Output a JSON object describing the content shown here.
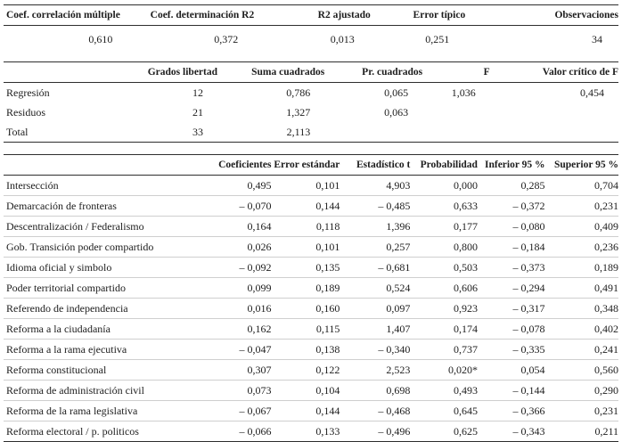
{
  "summary_table": {
    "headers": [
      "Coef. correlación múltiple",
      "Coef. determinación R2",
      "R2 ajustado",
      "Error típico",
      "Observaciones"
    ],
    "values": [
      "0,610",
      "0,372",
      "0,013",
      "0,251",
      "34"
    ]
  },
  "anova_table": {
    "headers": [
      "",
      "Grados libertad",
      "Suma cuadrados",
      "Pr. cuadrados",
      "F",
      "Valor crítico de F"
    ],
    "rows": [
      [
        "Regresión",
        "12",
        "0,786",
        "0,065",
        "1,036",
        "0,454"
      ],
      [
        "Residuos",
        "21",
        "1,327",
        "0,063",
        "",
        ""
      ],
      [
        "Total",
        "33",
        "2,113",
        "",
        "",
        ""
      ]
    ]
  },
  "coefficients_table": {
    "headers": [
      "",
      "Coeficientes",
      "Error estándar",
      "Estadístico t",
      "Probabilidad",
      "Inferior 95 %",
      "Superior 95 %"
    ],
    "rows": [
      [
        "Intersección",
        "0,495",
        "0,101",
        "4,903",
        "0,000",
        "0,285",
        "0,704"
      ],
      [
        "Demarcación de fronteras",
        "– 0,070",
        "0,144",
        "– 0,485",
        "0,633",
        "– 0,372",
        "0,231"
      ],
      [
        "Descentralización / Federalismo",
        "0,164",
        "0,118",
        "1,396",
        "0,177",
        "– 0,080",
        "0,409"
      ],
      [
        "Gob. Transición poder compartido",
        "0,026",
        "0,101",
        "0,257",
        "0,800",
        "– 0,184",
        "0,236"
      ],
      [
        "Idioma oficial y simbolo",
        "– 0,092",
        "0,135",
        "– 0,681",
        "0,503",
        "– 0,373",
        "0,189"
      ],
      [
        "Poder territorial compartido",
        "0,099",
        "0,189",
        "0,524",
        "0,606",
        "– 0,294",
        "0,491"
      ],
      [
        "Referendo de independencia",
        "0,016",
        "0,160",
        "0,097",
        "0,923",
        "– 0,317",
        "0,348"
      ],
      [
        "Reforma a la ciudadanía",
        "0,162",
        "0,115",
        "1,407",
        "0,174",
        "– 0,078",
        "0,402"
      ],
      [
        "Reforma a la rama ejecutiva",
        "– 0,047",
        "0,138",
        "– 0,340",
        "0,737",
        "– 0,335",
        "0,241"
      ],
      [
        "Reforma constitucional",
        "0,307",
        "0,122",
        "2,523",
        "0,020*",
        "0,054",
        "0,560"
      ],
      [
        "Reforma de administración civil",
        "0,073",
        "0,104",
        "0,698",
        "0,493",
        "– 0,144",
        "0,290"
      ],
      [
        "Reforma de la rama legislativa",
        "– 0,067",
        "0,144",
        "– 0,468",
        "0,645",
        "– 0,366",
        "0,231"
      ],
      [
        "Reforma electoral / p. politicos",
        "– 0,066",
        "0,133",
        "– 0,496",
        "0,625",
        "– 0,343",
        "0,211"
      ]
    ]
  }
}
